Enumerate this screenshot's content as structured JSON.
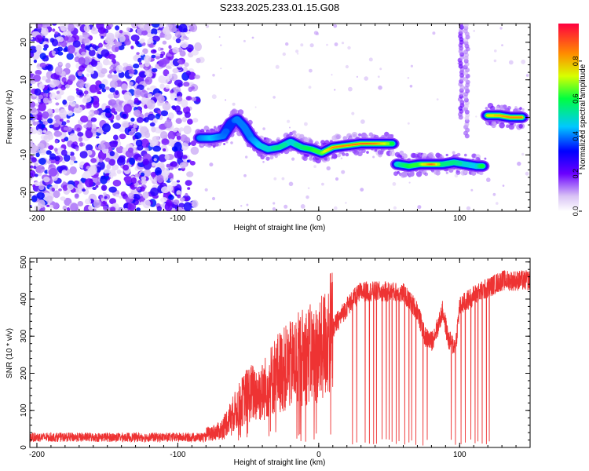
{
  "title": "S233.2025.233.01.15.G08",
  "chart_data": [
    {
      "type": "heatmap",
      "xlabel": "Height of straight line (km)",
      "ylabel": "Frequency (Hz)",
      "xlim": [
        -205,
        150
      ],
      "ylim": [
        -25,
        25
      ],
      "xticks": [
        -200,
        -100,
        0,
        100
      ],
      "yticks": [
        20,
        10,
        0,
        -10,
        -20
      ],
      "colorbar": {
        "label": "Normalized spectral amplitude",
        "range": [
          0,
          1
        ],
        "ticks": [
          0.0,
          0.2,
          0.4,
          0.6,
          0.8
        ],
        "tick_labels": [
          "0.0",
          "0.2",
          "0.4",
          "0.6",
          "0.8"
        ]
      },
      "noise_region": {
        "x": [
          -205,
          -82
        ],
        "y": [
          -25,
          25
        ],
        "amplitude_max": 0.3
      },
      "ridge": [
        {
          "x": -84,
          "y": -5.5,
          "amp": 0.4
        },
        {
          "x": -76,
          "y": -5.5,
          "amp": 0.45
        },
        {
          "x": -68,
          "y": -5.0,
          "amp": 0.4
        },
        {
          "x": -62,
          "y": -1.5,
          "amp": 0.35
        },
        {
          "x": -58,
          "y": -0.5,
          "amp": 0.4
        },
        {
          "x": -53,
          "y": -2.5,
          "amp": 0.4
        },
        {
          "x": -48,
          "y": -5.5,
          "amp": 0.4
        },
        {
          "x": -42,
          "y": -7.5,
          "amp": 0.45
        },
        {
          "x": -36,
          "y": -8.5,
          "amp": 0.5
        },
        {
          "x": -28,
          "y": -8.0,
          "amp": 0.55
        },
        {
          "x": -20,
          "y": -6.5,
          "amp": 0.5
        },
        {
          "x": -12,
          "y": -8.0,
          "amp": 0.55
        },
        {
          "x": -5,
          "y": -8.5,
          "amp": 0.6
        },
        {
          "x": 2,
          "y": -9.5,
          "amp": 0.65
        },
        {
          "x": 10,
          "y": -8.0,
          "amp": 0.85
        },
        {
          "x": 20,
          "y": -7.5,
          "amp": 0.85
        },
        {
          "x": 30,
          "y": -7.0,
          "amp": 0.9
        },
        {
          "x": 40,
          "y": -7.0,
          "amp": 0.85
        },
        {
          "x": 48,
          "y": -7.0,
          "amp": 0.7
        },
        {
          "x": 56,
          "y": -12.5,
          "amp": 0.5
        },
        {
          "x": 64,
          "y": -13.0,
          "amp": 0.6
        },
        {
          "x": 72,
          "y": -12.5,
          "amp": 0.65
        },
        {
          "x": 80,
          "y": -12.5,
          "amp": 0.9
        },
        {
          "x": 88,
          "y": -12.5,
          "amp": 0.55
        },
        {
          "x": 96,
          "y": -12.0,
          "amp": 0.55
        },
        {
          "x": 104,
          "y": -12.5,
          "amp": 0.5
        },
        {
          "x": 112,
          "y": -13.0,
          "amp": 0.45
        },
        {
          "x": 120,
          "y": 0.5,
          "amp": 0.75
        },
        {
          "x": 128,
          "y": 0.5,
          "amp": 0.8
        },
        {
          "x": 136,
          "y": 0.0,
          "amp": 0.85
        },
        {
          "x": 144,
          "y": 0.0,
          "amp": 0.85
        }
      ],
      "vertical_streaks": [
        {
          "x": 101,
          "y": [
            0,
            25
          ],
          "amp": 0.2
        },
        {
          "x": 105,
          "y": [
            -5,
            25
          ],
          "amp": 0.15
        }
      ]
    },
    {
      "type": "line",
      "xlabel": "Height of straight line (km)",
      "ylabel": "SNR (10 * v/v)",
      "xlim": [
        -205,
        150
      ],
      "ylim": [
        0,
        510
      ],
      "xticks": [
        -200,
        -100,
        0,
        100
      ],
      "yticks": [
        0,
        100,
        200,
        300,
        400,
        500
      ],
      "color": "#ee3333",
      "baseline": [
        {
          "x": -205,
          "y": 25
        },
        {
          "x": -100,
          "y": 25
        },
        {
          "x": -85,
          "y": 30
        },
        {
          "x": -70,
          "y": 45
        },
        {
          "x": -60,
          "y": 95
        },
        {
          "x": -50,
          "y": 145
        },
        {
          "x": -40,
          "y": 150
        },
        {
          "x": -30,
          "y": 200
        },
        {
          "x": -20,
          "y": 220
        },
        {
          "x": -10,
          "y": 250
        },
        {
          "x": 0,
          "y": 250
        },
        {
          "x": 10,
          "y": 320
        },
        {
          "x": 20,
          "y": 380
        },
        {
          "x": 30,
          "y": 420
        },
        {
          "x": 40,
          "y": 420
        },
        {
          "x": 50,
          "y": 420
        },
        {
          "x": 60,
          "y": 415
        },
        {
          "x": 70,
          "y": 370
        },
        {
          "x": 75,
          "y": 300
        },
        {
          "x": 80,
          "y": 285
        },
        {
          "x": 85,
          "y": 330
        },
        {
          "x": 88,
          "y": 370
        },
        {
          "x": 92,
          "y": 290
        },
        {
          "x": 97,
          "y": 270
        },
        {
          "x": 100,
          "y": 380
        },
        {
          "x": 110,
          "y": 410
        },
        {
          "x": 120,
          "y": 430
        },
        {
          "x": 130,
          "y": 450
        },
        {
          "x": 140,
          "y": 450
        },
        {
          "x": 150,
          "y": 450
        }
      ],
      "dropouts_x": [
        24,
        27,
        33,
        36,
        39,
        41,
        45,
        48,
        50,
        52,
        55,
        57,
        61,
        64,
        66,
        69,
        74,
        77,
        94,
        97,
        101,
        104,
        108,
        111,
        113,
        116,
        119,
        121
      ]
    }
  ]
}
